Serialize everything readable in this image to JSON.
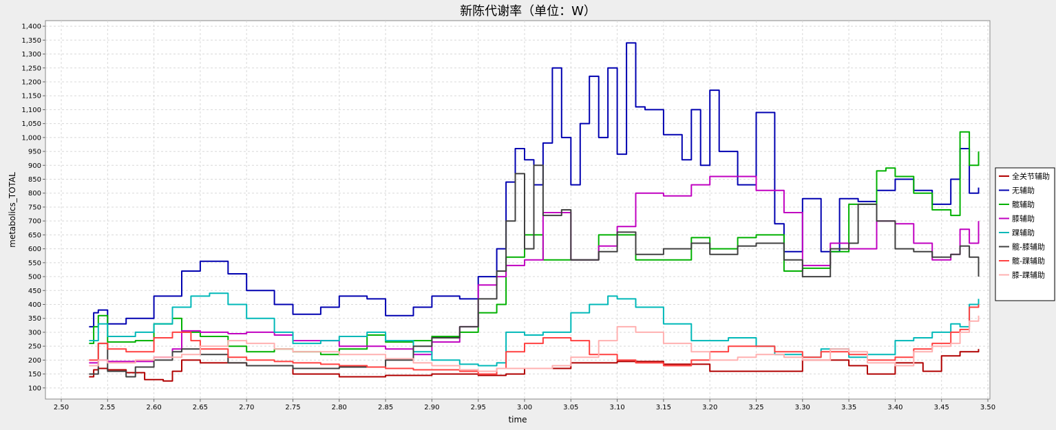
{
  "chart_data": {
    "type": "line",
    "title": "新陈代谢率（单位：W）",
    "xlabel": "time",
    "ylabel": "metabolics_TOTAL",
    "xlim": [
      2.5,
      3.5
    ],
    "ylim": [
      60,
      1420
    ],
    "x_ticks": [
      "2.50",
      "2.55",
      "2.60",
      "2.65",
      "2.70",
      "2.75",
      "2.80",
      "2.85",
      "2.90",
      "2.95",
      "3.00",
      "3.05",
      "3.10",
      "3.15",
      "3.20",
      "3.25",
      "3.30",
      "3.35",
      "3.40",
      "3.45",
      "3.50"
    ],
    "y_ticks": [
      "100",
      "150",
      "200",
      "250",
      "300",
      "350",
      "400",
      "450",
      "500",
      "550",
      "600",
      "650",
      "700",
      "750",
      "800",
      "850",
      "900",
      "950",
      "1,000",
      "1,050",
      "1,100",
      "1,150",
      "1,200",
      "1,250",
      "1,300",
      "1,350",
      "1,400"
    ],
    "grid": true,
    "legend_position": "right",
    "series": [
      {
        "name": "全关节辅助",
        "color": "#b00000",
        "x": [
          2.53,
          2.535,
          2.54,
          2.55,
          2.57,
          2.59,
          2.61,
          2.62,
          2.63,
          2.65,
          2.7,
          2.75,
          2.8,
          2.85,
          2.9,
          2.95,
          2.98,
          3.0,
          3.05,
          3.1,
          3.15,
          3.2,
          3.25,
          3.3,
          3.35,
          3.37,
          3.4,
          3.43,
          3.45,
          3.47,
          3.49
        ],
        "y": [
          140,
          165,
          170,
          165,
          155,
          130,
          125,
          160,
          200,
          190,
          180,
          150,
          140,
          145,
          150,
          145,
          150,
          170,
          190,
          195,
          185,
          160,
          160,
          200,
          180,
          150,
          190,
          160,
          215,
          230,
          240
        ]
      },
      {
        "name": "无辅助",
        "color": "#0000b0",
        "x": [
          2.53,
          2.535,
          2.54,
          2.55,
          2.57,
          2.6,
          2.63,
          2.65,
          2.68,
          2.7,
          2.73,
          2.75,
          2.78,
          2.8,
          2.83,
          2.85,
          2.88,
          2.9,
          2.93,
          2.95,
          2.97,
          2.98,
          2.99,
          3.0,
          3.01,
          3.02,
          3.03,
          3.04,
          3.05,
          3.06,
          3.07,
          3.08,
          3.09,
          3.1,
          3.11,
          3.12,
          3.13,
          3.15,
          3.17,
          3.18,
          3.19,
          3.2,
          3.21,
          3.23,
          3.25,
          3.27,
          3.28,
          3.3,
          3.32,
          3.34,
          3.36,
          3.38,
          3.4,
          3.42,
          3.44,
          3.46,
          3.47,
          3.48,
          3.49
        ],
        "y": [
          320,
          370,
          380,
          330,
          350,
          430,
          520,
          555,
          510,
          450,
          400,
          365,
          390,
          430,
          420,
          360,
          390,
          430,
          420,
          500,
          600,
          840,
          960,
          920,
          830,
          980,
          1250,
          1000,
          830,
          1050,
          1220,
          1000,
          1250,
          940,
          1340,
          1110,
          1100,
          1010,
          920,
          1100,
          900,
          1170,
          950,
          830,
          1090,
          690,
          590,
          780,
          590,
          780,
          770,
          810,
          850,
          810,
          760,
          850,
          960,
          800,
          820
        ]
      },
      {
        "name": "髋辅助",
        "color": "#00b000",
        "x": [
          2.53,
          2.535,
          2.54,
          2.55,
          2.58,
          2.6,
          2.62,
          2.63,
          2.65,
          2.68,
          2.7,
          2.73,
          2.75,
          2.78,
          2.8,
          2.83,
          2.85,
          2.88,
          2.9,
          2.93,
          2.95,
          2.97,
          2.98,
          3.0,
          3.02,
          3.05,
          3.08,
          3.1,
          3.12,
          3.15,
          3.18,
          3.2,
          3.23,
          3.25,
          3.28,
          3.3,
          3.33,
          3.35,
          3.38,
          3.39,
          3.4,
          3.42,
          3.44,
          3.46,
          3.47,
          3.48,
          3.49
        ],
        "y": [
          260,
          320,
          360,
          265,
          270,
          330,
          350,
          300,
          285,
          250,
          230,
          240,
          230,
          220,
          240,
          290,
          265,
          270,
          285,
          300,
          370,
          400,
          570,
          650,
          560,
          560,
          650,
          650,
          560,
          560,
          640,
          600,
          640,
          650,
          520,
          530,
          590,
          760,
          880,
          890,
          860,
          800,
          740,
          720,
          1020,
          900,
          950
        ]
      },
      {
        "name": "膝辅助",
        "color": "#c000c0",
        "x": [
          2.53,
          2.54,
          2.55,
          2.6,
          2.62,
          2.63,
          2.65,
          2.68,
          2.7,
          2.73,
          2.75,
          2.8,
          2.85,
          2.88,
          2.9,
          2.93,
          2.95,
          2.97,
          2.98,
          3.0,
          3.02,
          3.05,
          3.08,
          3.1,
          3.12,
          3.15,
          3.18,
          3.2,
          3.23,
          3.25,
          3.28,
          3.3,
          3.33,
          3.35,
          3.38,
          3.4,
          3.42,
          3.44,
          3.46,
          3.47,
          3.48,
          3.49
        ],
        "y": [
          190,
          200,
          195,
          210,
          240,
          305,
          300,
          295,
          300,
          290,
          270,
          250,
          240,
          220,
          265,
          320,
          470,
          500,
          540,
          560,
          730,
          560,
          610,
          680,
          800,
          790,
          830,
          860,
          860,
          810,
          730,
          540,
          620,
          600,
          700,
          690,
          620,
          560,
          580,
          670,
          620,
          700
        ]
      },
      {
        "name": "踝辅助",
        "color": "#00b8b8",
        "x": [
          2.53,
          2.54,
          2.55,
          2.58,
          2.6,
          2.62,
          2.64,
          2.66,
          2.68,
          2.7,
          2.73,
          2.75,
          2.78,
          2.8,
          2.83,
          2.85,
          2.88,
          2.9,
          2.93,
          2.95,
          2.97,
          2.98,
          3.0,
          3.02,
          3.05,
          3.07,
          3.09,
          3.1,
          3.12,
          3.15,
          3.18,
          3.2,
          3.22,
          3.25,
          3.27,
          3.3,
          3.32,
          3.35,
          3.37,
          3.4,
          3.42,
          3.44,
          3.46,
          3.47,
          3.48,
          3.49
        ],
        "y": [
          270,
          330,
          285,
          300,
          330,
          390,
          430,
          440,
          400,
          350,
          300,
          260,
          270,
          285,
          300,
          270,
          230,
          200,
          185,
          180,
          190,
          300,
          290,
          300,
          370,
          400,
          430,
          420,
          390,
          330,
          270,
          270,
          280,
          250,
          220,
          210,
          240,
          210,
          220,
          270,
          280,
          300,
          330,
          320,
          400,
          420
        ]
      },
      {
        "name": "髋-膝辅助",
        "color": "#404040",
        "x": [
          2.53,
          2.54,
          2.55,
          2.57,
          2.58,
          2.6,
          2.62,
          2.63,
          2.65,
          2.68,
          2.7,
          2.75,
          2.8,
          2.85,
          2.88,
          2.9,
          2.93,
          2.95,
          2.97,
          2.98,
          2.99,
          3.0,
          3.01,
          3.02,
          3.04,
          3.05,
          3.08,
          3.1,
          3.12,
          3.15,
          3.18,
          3.2,
          3.23,
          3.25,
          3.28,
          3.3,
          3.33,
          3.35,
          3.36,
          3.38,
          3.4,
          3.42,
          3.44,
          3.46,
          3.47,
          3.48,
          3.49
        ],
        "y": [
          150,
          260,
          160,
          140,
          175,
          200,
          230,
          240,
          220,
          190,
          180,
          170,
          175,
          200,
          250,
          280,
          320,
          420,
          520,
          700,
          870,
          600,
          900,
          720,
          740,
          560,
          590,
          660,
          580,
          600,
          620,
          580,
          610,
          620,
          560,
          500,
          600,
          620,
          760,
          700,
          600,
          590,
          570,
          580,
          610,
          570,
          500
        ]
      },
      {
        "name": "髋-踝辅助",
        "color": "#ff4040",
        "x": [
          2.53,
          2.54,
          2.55,
          2.57,
          2.6,
          2.62,
          2.64,
          2.65,
          2.68,
          2.7,
          2.73,
          2.75,
          2.78,
          2.8,
          2.83,
          2.85,
          2.88,
          2.9,
          2.93,
          2.95,
          2.97,
          2.98,
          3.0,
          3.02,
          3.05,
          3.07,
          3.1,
          3.12,
          3.15,
          3.18,
          3.2,
          3.22,
          3.25,
          3.27,
          3.3,
          3.32,
          3.35,
          3.37,
          3.4,
          3.42,
          3.44,
          3.46,
          3.47,
          3.48,
          3.49
        ],
        "y": [
          200,
          260,
          240,
          230,
          280,
          300,
          270,
          240,
          210,
          200,
          195,
          190,
          185,
          180,
          175,
          170,
          165,
          165,
          160,
          150,
          170,
          230,
          260,
          280,
          270,
          220,
          200,
          190,
          180,
          200,
          230,
          250,
          250,
          230,
          210,
          230,
          220,
          200,
          210,
          240,
          260,
          300,
          310,
          390,
          400
        ]
      },
      {
        "name": "膝-踝辅助",
        "color": "#ffb0b0",
        "x": [
          2.53,
          2.54,
          2.55,
          2.58,
          2.6,
          2.63,
          2.65,
          2.68,
          2.7,
          2.73,
          2.75,
          2.8,
          2.85,
          2.88,
          2.9,
          2.93,
          2.95,
          2.97,
          3.0,
          3.03,
          3.05,
          3.08,
          3.1,
          3.12,
          3.15,
          3.18,
          3.2,
          3.23,
          3.25,
          3.28,
          3.3,
          3.33,
          3.35,
          3.37,
          3.4,
          3.42,
          3.44,
          3.46,
          3.47,
          3.48,
          3.49
        ],
        "y": [
          180,
          200,
          190,
          200,
          210,
          220,
          250,
          270,
          260,
          240,
          230,
          220,
          205,
          190,
          180,
          165,
          160,
          170,
          170,
          180,
          210,
          270,
          320,
          300,
          260,
          230,
          200,
          210,
          220,
          210,
          200,
          240,
          230,
          190,
          180,
          230,
          250,
          260,
          300,
          340,
          360
        ]
      }
    ]
  }
}
